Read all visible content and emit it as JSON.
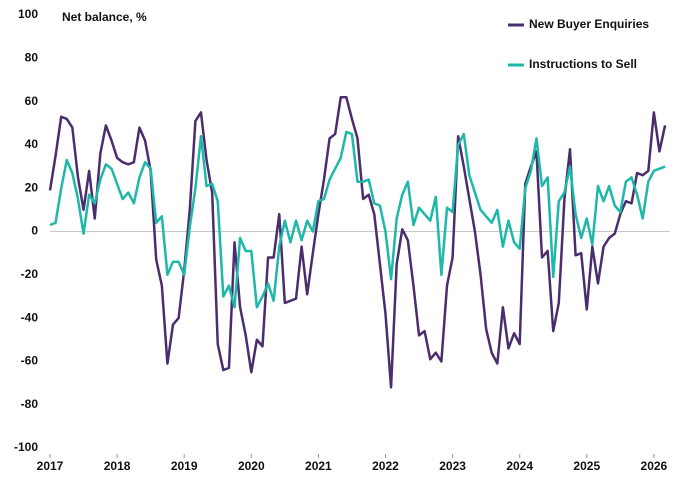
{
  "chart_data": {
    "type": "line",
    "y_label": "Net balance, %",
    "x": [
      2017,
      2017.083,
      2017.167,
      2017.25,
      2017.333,
      2017.417,
      2017.5,
      2017.583,
      2017.667,
      2017.75,
      2017.833,
      2017.917,
      2018,
      2018.083,
      2018.167,
      2018.25,
      2018.333,
      2018.417,
      2018.5,
      2018.583,
      2018.667,
      2018.75,
      2018.833,
      2018.917,
      2019,
      2019.083,
      2019.167,
      2019.25,
      2019.333,
      2019.417,
      2019.5,
      2019.583,
      2019.667,
      2019.75,
      2019.833,
      2019.917,
      2020,
      2020.083,
      2020.167,
      2020.25,
      2020.333,
      2020.417,
      2020.5,
      2020.583,
      2020.667,
      2020.75,
      2020.833,
      2020.917,
      2021,
      2021.083,
      2021.167,
      2021.25,
      2021.333,
      2021.417,
      2021.5,
      2021.583,
      2021.667,
      2021.75,
      2021.833,
      2021.917,
      2022,
      2022.083,
      2022.167,
      2022.25,
      2022.333,
      2022.417,
      2022.5,
      2022.583,
      2022.667,
      2022.75,
      2022.833,
      2022.917,
      2023,
      2023.083,
      2023.167,
      2023.25,
      2023.333,
      2023.417,
      2023.5,
      2023.583,
      2023.667,
      2023.75,
      2023.833,
      2023.917,
      2024,
      2024.083,
      2024.167,
      2024.25,
      2024.333,
      2024.417,
      2024.5,
      2024.583,
      2024.667,
      2024.75,
      2024.833,
      2024.917,
      2025,
      2025.083,
      2025.167,
      2025.25,
      2025.333,
      2025.417,
      2025.5,
      2025.583,
      2025.667,
      2025.75,
      2025.833,
      2025.917,
      2026,
      2026.083,
      2026.167
    ],
    "series": [
      {
        "name": "New Buyer Enquiries",
        "color": "#4b2d6e",
        "values": [
          19,
          35,
          53,
          52,
          48,
          25,
          10,
          28,
          6,
          36,
          49,
          42,
          34,
          32,
          31,
          32,
          48,
          42,
          28,
          -13,
          -25,
          -61,
          -43,
          -40,
          -18,
          10,
          51,
          55,
          33,
          18,
          -52,
          -64,
          -63,
          -5,
          -35,
          -48,
          -65,
          -50,
          -53,
          -12,
          -12,
          8,
          -33,
          -32,
          -31,
          -7,
          -29,
          -10,
          8,
          24,
          43,
          45,
          62,
          62,
          52,
          43,
          15,
          17,
          8,
          -15,
          -38,
          -72,
          -15,
          1,
          -4,
          -25,
          -48,
          -46,
          -59,
          -56,
          -60,
          -25,
          -12,
          44,
          30,
          15,
          0,
          -20,
          -45,
          -56,
          -61,
          -35,
          -54,
          -47,
          -52,
          22,
          30,
          37,
          -12,
          -9,
          -46,
          -33,
          15,
          38,
          -11,
          -10,
          -36,
          -7,
          -24,
          -7,
          -3,
          -1,
          8,
          14,
          13,
          27,
          26,
          28,
          55,
          37,
          49
        ]
      },
      {
        "name": "Instructions to Sell",
        "color": "#1db8a8",
        "values": [
          3,
          4,
          20,
          33,
          27,
          15,
          -1,
          17,
          13,
          24,
          31,
          29,
          22,
          15,
          18,
          13,
          25,
          32,
          29,
          4,
          7,
          -20,
          -14,
          -14,
          -20,
          2,
          20,
          44,
          21,
          22,
          14,
          -30,
          -25,
          -35,
          -3,
          -9,
          -9,
          -35,
          -30,
          -24,
          -32,
          -7,
          5,
          -5,
          5,
          -4,
          5,
          0,
          14,
          15,
          24,
          29,
          34,
          46,
          45,
          23,
          23,
          24,
          13,
          12,
          0,
          -22,
          6,
          17,
          23,
          3,
          11,
          8,
          5,
          16,
          -20,
          11,
          9,
          40,
          45,
          26,
          18,
          10,
          7,
          4,
          10,
          -7,
          5,
          -5,
          -8,
          20,
          28,
          43,
          21,
          25,
          -21,
          14,
          18,
          30,
          8,
          -3,
          6,
          -6,
          21,
          14,
          21,
          12,
          9,
          23,
          25,
          17,
          6,
          23,
          28,
          29,
          30
        ]
      }
    ],
    "xlim": [
      2017,
      2026.3
    ],
    "xticks": [
      2017,
      2018,
      2019,
      2020,
      2021,
      2022,
      2023,
      2024,
      2025,
      2026
    ],
    "ylim": [
      -100,
      100
    ],
    "yticks": [
      -100,
      -80,
      -60,
      -40,
      -20,
      0,
      20,
      40,
      60,
      80,
      100
    ],
    "legend": "top-right"
  }
}
